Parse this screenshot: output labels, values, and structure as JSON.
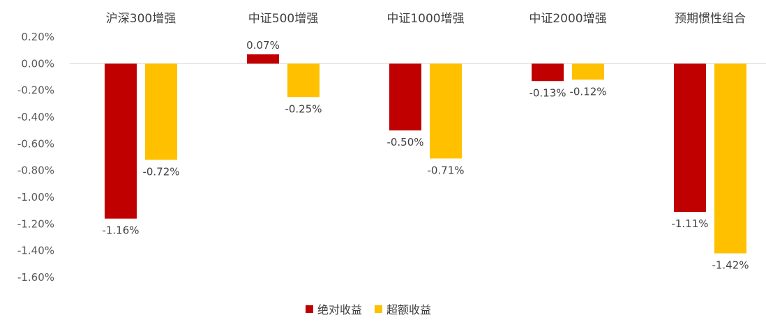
{
  "chart_data": {
    "type": "bar",
    "categories": [
      "沪深300增强",
      "中证500增强",
      "中证1000增强",
      "中证2000增强",
      "预期惯性组合"
    ],
    "series": [
      {
        "name": "绝对收益",
        "values": [
          -1.16,
          0.07,
          -0.5,
          -0.13,
          -1.11
        ],
        "labels": [
          "-1.16%",
          "0.07%",
          "-0.50%",
          "-0.13%",
          "-1.11%"
        ],
        "color": "#C00000"
      },
      {
        "name": "超额收益",
        "values": [
          -0.72,
          -0.25,
          -0.71,
          -0.12,
          -1.42
        ],
        "labels": [
          "-0.72%",
          "-0.25%",
          "-0.71%",
          "-0.12%",
          "-1.42%"
        ],
        "color": "#FFC000"
      }
    ],
    "yticks": [
      "0.20%",
      "0.00%",
      "-0.20%",
      "-0.40%",
      "-0.60%",
      "-0.80%",
      "-1.00%",
      "-1.20%",
      "-1.40%",
      "-1.60%"
    ],
    "ylim": [
      -1.6,
      0.2
    ],
    "unit": "%",
    "legend_position": "bottom",
    "grid": false
  }
}
